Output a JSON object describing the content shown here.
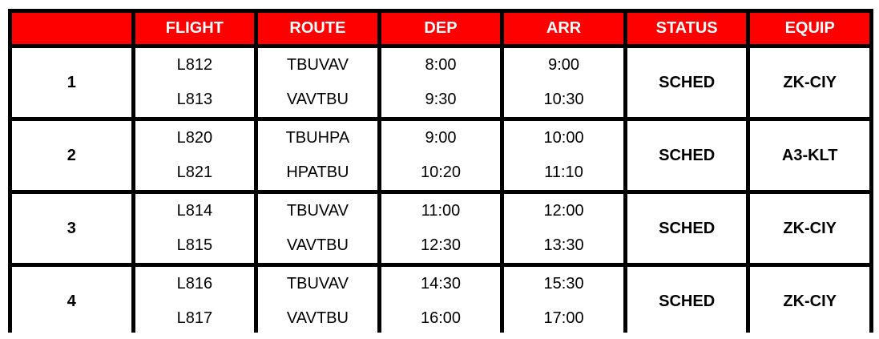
{
  "header": [
    "",
    "FLIGHT",
    "ROUTE",
    "DEP",
    "ARR",
    "STATUS",
    "EQUIP"
  ],
  "header_color": "#ff0000",
  "rows": [
    {
      "num": "1",
      "flights": [
        "L812",
        "L813"
      ],
      "routes": [
        "TBUVAV",
        "VAVTBU"
      ],
      "dep": [
        "8:00",
        "9:30"
      ],
      "arr": [
        "9:00",
        "10:30"
      ],
      "status": "SCHED",
      "equip": "ZK-CIY"
    },
    {
      "num": "2",
      "flights": [
        "L820",
        "L821"
      ],
      "routes": [
        "TBUHPA",
        "HPATBU"
      ],
      "dep": [
        "9:00",
        "10:20"
      ],
      "arr": [
        "10:00",
        "11:10"
      ],
      "status": "SCHED",
      "equip": "A3-KLT"
    },
    {
      "num": "3",
      "flights": [
        "L814",
        "L815"
      ],
      "routes": [
        "TBUVAV",
        "VAVTBU"
      ],
      "dep": [
        "11:00",
        "12:30"
      ],
      "arr": [
        "12:00",
        "13:30"
      ],
      "status": "SCHED",
      "equip": "ZK-CIY"
    },
    {
      "num": "4",
      "flights": [
        "L816",
        "L817"
      ],
      "routes": [
        "TBUVAV",
        "VAVTBU"
      ],
      "dep": [
        "14:30",
        "16:00"
      ],
      "arr": [
        "15:30",
        "17:00"
      ],
      "status": "SCHED",
      "equip": "ZK-CIY"
    }
  ]
}
